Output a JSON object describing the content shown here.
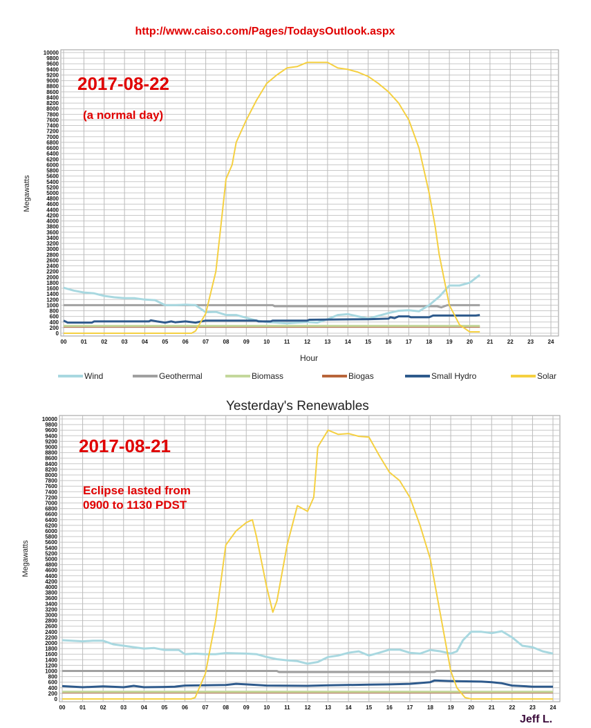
{
  "header": {
    "source_url": "http://www.caiso.com/Pages/TodaysOutlook.aspx"
  },
  "annotations": {
    "top_date": "2017-08-22",
    "top_note": "(a normal day)",
    "bottom_date": "2017-08-21",
    "bottom_note_line1": "Eclipse lasted from",
    "bottom_note_line2": "0900 to 1130 PDST",
    "author": "Jeff L."
  },
  "colors": {
    "Wind": "#a8d8e0",
    "Geothermal": "#a0a0a0",
    "Biomass": "#c4d89c",
    "Biogas": "#b8653a",
    "Small Hydro": "#2e5a8c",
    "Solar": "#f5d040"
  },
  "legend": [
    "Wind",
    "Geothermal",
    "Biomass",
    "Biogas",
    "Small Hydro",
    "Solar"
  ],
  "chart_data": [
    {
      "type": "line",
      "title": "",
      "xlabel": "Hour",
      "ylabel": "Megawatts",
      "xlim": [
        0,
        24
      ],
      "ylim": [
        0,
        10000
      ],
      "ytick_step": 200,
      "xticks": [
        "00",
        "01",
        "02",
        "03",
        "04",
        "05",
        "06",
        "07",
        "08",
        "09",
        "10",
        "11",
        "12",
        "13",
        "14",
        "15",
        "16",
        "17",
        "18",
        "19",
        "20",
        "21",
        "22",
        "23",
        "24"
      ],
      "grid": true,
      "series": [
        {
          "name": "Biogas",
          "points": [
            [
              0,
              230
            ],
            [
              20.5,
              230
            ]
          ]
        },
        {
          "name": "Biomass",
          "points": [
            [
              0,
              260
            ],
            [
              20.5,
              260
            ]
          ]
        },
        {
          "name": "Geothermal",
          "points": [
            [
              0,
              1000
            ],
            [
              10.3,
              1000
            ],
            [
              10.4,
              960
            ],
            [
              18.4,
              960
            ],
            [
              18.6,
              920
            ],
            [
              18.9,
              1000
            ],
            [
              20.5,
              1000
            ]
          ]
        },
        {
          "name": "Wind",
          "points": [
            [
              0,
              1620
            ],
            [
              0.5,
              1520
            ],
            [
              1,
              1450
            ],
            [
              1.5,
              1420
            ],
            [
              2,
              1330
            ],
            [
              2.5,
              1280
            ],
            [
              3,
              1250
            ],
            [
              3.5,
              1250
            ],
            [
              4,
              1200
            ],
            [
              4.5,
              1180
            ],
            [
              5,
              1000
            ],
            [
              5.5,
              1000
            ],
            [
              6,
              1020
            ],
            [
              6.5,
              1000
            ],
            [
              7,
              750
            ],
            [
              7.5,
              760
            ],
            [
              8,
              650
            ],
            [
              8.5,
              650
            ],
            [
              9,
              550
            ],
            [
              9.5,
              450
            ],
            [
              10,
              400
            ],
            [
              10.5,
              380
            ],
            [
              11,
              350
            ],
            [
              11.5,
              380
            ],
            [
              12,
              400
            ],
            [
              12.5,
              380
            ],
            [
              13,
              500
            ],
            [
              13.5,
              650
            ],
            [
              14,
              680
            ],
            [
              14.5,
              600
            ],
            [
              15,
              520
            ],
            [
              15.5,
              620
            ],
            [
              16,
              720
            ],
            [
              16.5,
              800
            ],
            [
              17,
              820
            ],
            [
              17.5,
              780
            ],
            [
              18,
              1000
            ],
            [
              18.5,
              1300
            ],
            [
              19,
              1700
            ],
            [
              19.5,
              1700
            ],
            [
              20,
              1800
            ],
            [
              20.5,
              2080
            ]
          ]
        },
        {
          "name": "Small Hydro",
          "points": [
            [
              0,
              450
            ],
            [
              0.2,
              380
            ],
            [
              1.4,
              380
            ],
            [
              1.5,
              420
            ],
            [
              4.2,
              420
            ],
            [
              4.3,
              460
            ],
            [
              4.6,
              420
            ],
            [
              5,
              380
            ],
            [
              5.3,
              420
            ],
            [
              5.5,
              390
            ],
            [
              6,
              420
            ],
            [
              6.5,
              380
            ],
            [
              7,
              450
            ],
            [
              9.5,
              450
            ],
            [
              9.6,
              420
            ],
            [
              10.2,
              420
            ],
            [
              10.3,
              450
            ],
            [
              12,
              450
            ],
            [
              12.1,
              480
            ],
            [
              15,
              500
            ],
            [
              16,
              520
            ],
            [
              16.1,
              570
            ],
            [
              16.3,
              540
            ],
            [
              16.5,
              600
            ],
            [
              17,
              600
            ],
            [
              17.1,
              570
            ],
            [
              18,
              570
            ],
            [
              18.2,
              630
            ],
            [
              20.3,
              630
            ],
            [
              20.5,
              650
            ]
          ]
        },
        {
          "name": "Solar",
          "points": [
            [
              0,
              0
            ],
            [
              6.3,
              0
            ],
            [
              6.5,
              80
            ],
            [
              7,
              700
            ],
            [
              7.5,
              2200
            ],
            [
              8,
              5500
            ],
            [
              8.3,
              6000
            ],
            [
              8.5,
              6800
            ],
            [
              9,
              7600
            ],
            [
              9.5,
              8300
            ],
            [
              10,
              8900
            ],
            [
              10.5,
              9200
            ],
            [
              11,
              9450
            ],
            [
              11.5,
              9500
            ],
            [
              12,
              9650
            ],
            [
              12.5,
              9650
            ],
            [
              13,
              9650
            ],
            [
              13.5,
              9450
            ],
            [
              14,
              9400
            ],
            [
              14.5,
              9300
            ],
            [
              15,
              9150
            ],
            [
              15.5,
              8900
            ],
            [
              16,
              8600
            ],
            [
              16.5,
              8200
            ],
            [
              17,
              7600
            ],
            [
              17.5,
              6600
            ],
            [
              18,
              5000
            ],
            [
              18.3,
              3800
            ],
            [
              18.5,
              2800
            ],
            [
              19,
              1000
            ],
            [
              19.5,
              300
            ],
            [
              20,
              50
            ],
            [
              20.5,
              50
            ]
          ]
        }
      ]
    },
    {
      "type": "line",
      "title": "Yesterday's Renewables",
      "xlabel": "",
      "ylabel": "Megawatts",
      "xlim": [
        0,
        24
      ],
      "ylim": [
        0,
        10000
      ],
      "ytick_step": 200,
      "xticks": [
        "00",
        "01",
        "02",
        "03",
        "04",
        "05",
        "06",
        "07",
        "08",
        "09",
        "10",
        "11",
        "12",
        "13",
        "14",
        "15",
        "16",
        "17",
        "18",
        "19",
        "20",
        "21",
        "22",
        "23",
        "24"
      ],
      "grid": true,
      "series": [
        {
          "name": "Biogas",
          "points": [
            [
              0,
              230
            ],
            [
              24,
              230
            ]
          ]
        },
        {
          "name": "Biomass",
          "points": [
            [
              0,
              260
            ],
            [
              24,
              260
            ]
          ]
        },
        {
          "name": "Geothermal",
          "points": [
            [
              0,
              1000
            ],
            [
              10.5,
              1000
            ],
            [
              10.6,
              960
            ],
            [
              18.2,
              960
            ],
            [
              18.3,
              1000
            ],
            [
              24,
              1000
            ]
          ]
        },
        {
          "name": "Wind",
          "points": [
            [
              0,
              2100
            ],
            [
              1,
              2060
            ],
            [
              1.5,
              2080
            ],
            [
              2,
              2080
            ],
            [
              2.5,
              1950
            ],
            [
              3,
              1900
            ],
            [
              3.5,
              1850
            ],
            [
              4,
              1800
            ],
            [
              4.5,
              1820
            ],
            [
              5,
              1750
            ],
            [
              5.7,
              1750
            ],
            [
              6,
              1600
            ],
            [
              6.5,
              1620
            ],
            [
              7,
              1600
            ],
            [
              7.5,
              1600
            ],
            [
              8,
              1640
            ],
            [
              9,
              1620
            ],
            [
              9.5,
              1600
            ],
            [
              10,
              1500
            ],
            [
              10.5,
              1420
            ],
            [
              11,
              1380
            ],
            [
              11.5,
              1350
            ],
            [
              12,
              1260
            ],
            [
              12.5,
              1320
            ],
            [
              13,
              1500
            ],
            [
              13.5,
              1550
            ],
            [
              14,
              1650
            ],
            [
              14.5,
              1700
            ],
            [
              15,
              1550
            ],
            [
              15.5,
              1650
            ],
            [
              16,
              1760
            ],
            [
              16.5,
              1760
            ],
            [
              17,
              1650
            ],
            [
              17.5,
              1620
            ],
            [
              18,
              1750
            ],
            [
              18.5,
              1700
            ],
            [
              19,
              1620
            ],
            [
              19.3,
              1700
            ],
            [
              19.6,
              2100
            ],
            [
              20,
              2400
            ],
            [
              20.5,
              2400
            ],
            [
              21,
              2350
            ],
            [
              21.5,
              2420
            ],
            [
              22,
              2200
            ],
            [
              22.5,
              1900
            ],
            [
              23,
              1850
            ],
            [
              23.5,
              1700
            ],
            [
              24,
              1620
            ]
          ]
        },
        {
          "name": "Small Hydro",
          "points": [
            [
              0,
              460
            ],
            [
              1,
              420
            ],
            [
              2,
              450
            ],
            [
              3,
              420
            ],
            [
              3.5,
              470
            ],
            [
              4,
              420
            ],
            [
              5,
              430
            ],
            [
              5.5,
              440
            ],
            [
              6,
              480
            ],
            [
              8,
              500
            ],
            [
              8.5,
              540
            ],
            [
              9,
              520
            ],
            [
              10,
              480
            ],
            [
              12,
              470
            ],
            [
              13,
              490
            ],
            [
              15,
              510
            ],
            [
              16,
              520
            ],
            [
              17,
              540
            ],
            [
              18,
              600
            ],
            [
              18.2,
              660
            ],
            [
              19,
              640
            ],
            [
              20.5,
              620
            ],
            [
              21,
              600
            ],
            [
              21.5,
              560
            ],
            [
              22,
              480
            ],
            [
              23,
              440
            ],
            [
              24,
              440
            ]
          ]
        },
        {
          "name": "Solar",
          "points": [
            [
              0,
              0
            ],
            [
              6.3,
              0
            ],
            [
              6.5,
              50
            ],
            [
              7,
              900
            ],
            [
              7.5,
              2800
            ],
            [
              8,
              5500
            ],
            [
              8.5,
              6000
            ],
            [
              9,
              6300
            ],
            [
              9.3,
              6400
            ],
            [
              9.5,
              5800
            ],
            [
              10,
              4000
            ],
            [
              10.3,
              3100
            ],
            [
              10.5,
              3500
            ],
            [
              11,
              5500
            ],
            [
              11.5,
              6900
            ],
            [
              12,
              6700
            ],
            [
              12.3,
              7200
            ],
            [
              12.5,
              9000
            ],
            [
              13,
              9600
            ],
            [
              13.5,
              9450
            ],
            [
              14,
              9480
            ],
            [
              14.5,
              9380
            ],
            [
              15,
              9350
            ],
            [
              15.5,
              8700
            ],
            [
              16,
              8100
            ],
            [
              16.5,
              7800
            ],
            [
              17,
              7200
            ],
            [
              17.5,
              6200
            ],
            [
              18,
              5000
            ],
            [
              18.5,
              3000
            ],
            [
              19,
              1000
            ],
            [
              19.3,
              400
            ],
            [
              19.7,
              50
            ],
            [
              20,
              0
            ],
            [
              24,
              0
            ]
          ]
        }
      ]
    }
  ]
}
